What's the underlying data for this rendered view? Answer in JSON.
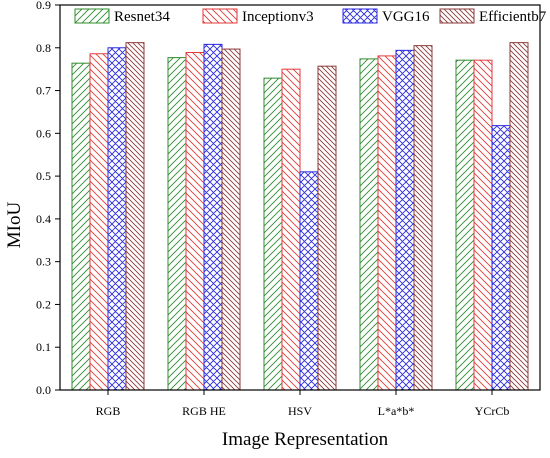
{
  "chart_data": {
    "type": "bar",
    "title": "",
    "xlabel": "Image Representation",
    "ylabel": "MIoU",
    "ylim": [
      0,
      0.9
    ],
    "yticks": [
      "0.0",
      "0.1",
      "0.2",
      "0.3",
      "0.4",
      "0.5",
      "0.6",
      "0.7",
      "0.8",
      "0.9"
    ],
    "categories": [
      "RGB",
      "RGB HE",
      "HSV",
      "L*a*b*",
      "YCrCb"
    ],
    "legend_position": "top",
    "grid": false,
    "series": [
      {
        "name": "Resnet34",
        "color": "#2e8b2e",
        "pattern": "diagonal-up",
        "values": [
          0.764,
          0.777,
          0.729,
          0.774,
          0.771
        ]
      },
      {
        "name": "Inceptionv3",
        "color": "#e23a3a",
        "pattern": "diagonal-down",
        "values": [
          0.786,
          0.789,
          0.75,
          0.781,
          0.771
        ]
      },
      {
        "name": "VGG16",
        "color": "#2a2ae0",
        "pattern": "crosshatch",
        "values": [
          0.8,
          0.808,
          0.51,
          0.794,
          0.618
        ]
      },
      {
        "name": "Efficientb7",
        "color": "#8b3a3a",
        "pattern": "diagonal-down-dense",
        "values": [
          0.812,
          0.797,
          0.757,
          0.805,
          0.812
        ]
      }
    ]
  }
}
